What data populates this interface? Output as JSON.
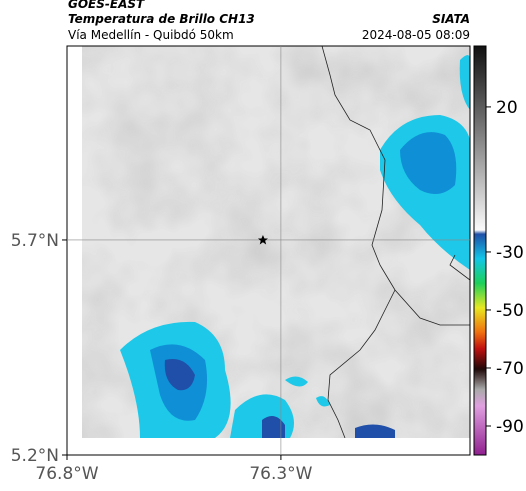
{
  "header": {
    "satellite": "GOES-EAST",
    "product": "Temperatura de Brillo CH13",
    "route": "Vía Medellín - Quibdó 50km",
    "source": "SIATA",
    "datetime": "2024-08-05 08:09"
  },
  "map": {
    "xlim": [
      -76.8,
      -75.858
    ],
    "ylim": [
      5.2,
      6.151
    ],
    "xticks": [
      {
        "value": -76.8,
        "label": "76.8°W"
      },
      {
        "value": -76.3,
        "label": "76.3°W"
      }
    ],
    "yticks": [
      {
        "value": 5.7,
        "label": "5.7°N"
      },
      {
        "value": 5.2,
        "label": "5.2°N"
      }
    ],
    "marker": {
      "lon": -76.342,
      "lat": 5.7
    }
  },
  "colorbar": {
    "range": [
      41,
      -100
    ],
    "ticks": [
      20,
      -30,
      -50,
      -70,
      -90
    ]
  }
}
